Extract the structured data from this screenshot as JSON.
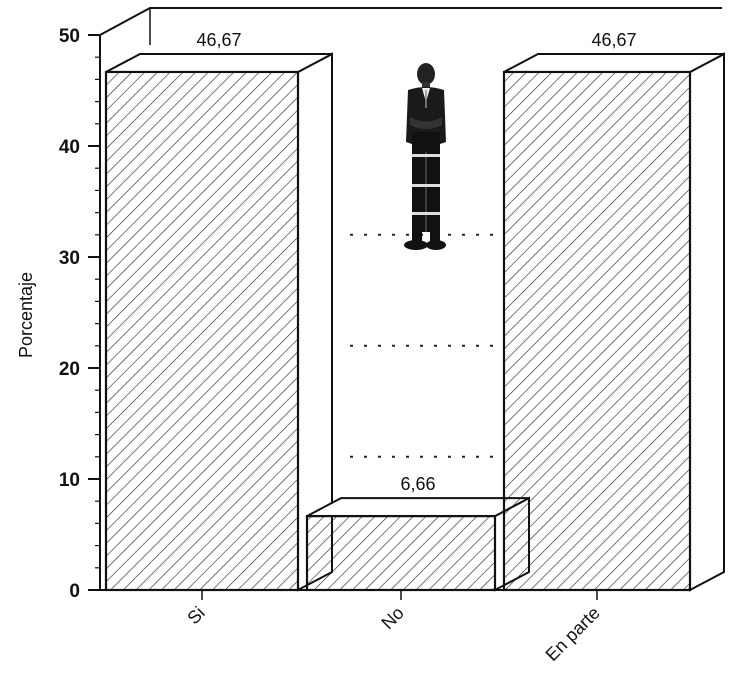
{
  "chart_data": {
    "type": "bar",
    "style": "3d-hatched",
    "categories": [
      "Si",
      "No",
      "En parte"
    ],
    "values": [
      46.67,
      6.66,
      46.67
    ],
    "data_labels": [
      "46,67",
      "6,66",
      "46,67"
    ],
    "ylabel": "Porcentaje",
    "xlabel": "",
    "ylim": [
      0,
      50
    ],
    "yticks": [
      0,
      10,
      20,
      30,
      40,
      50
    ],
    "ytick_labels": [
      "0",
      "10",
      "20",
      "30",
      "40",
      "50"
    ],
    "grid": false,
    "bar_fill": "hatched",
    "colors": {
      "ink": "#111111",
      "background": "#ffffff"
    }
  },
  "decorations": {
    "figure_icon": "businessman-figure-icon"
  }
}
